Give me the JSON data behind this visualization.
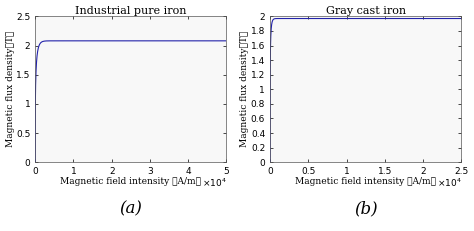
{
  "title_a": "Industrial pure iron",
  "title_b": "Gray cast iron",
  "xlabel_a": "Magnetic field intensity （A/m）",
  "xlabel_b": "Magnetic field intensity （A/m）",
  "ylabel_a": "Magnetic flux density（T）",
  "ylabel_b": "Magnetic flux density（T）",
  "label_a": "(a)",
  "label_b": "(b)",
  "xlim_a": [
    0,
    50000
  ],
  "ylim_a": [
    0,
    2.5
  ],
  "xticks_a": [
    0,
    10000,
    20000,
    30000,
    40000,
    50000
  ],
  "xticklabels_a": [
    "0",
    "1",
    "2",
    "3",
    "4",
    "5"
  ],
  "yticks_a": [
    0,
    0.5,
    1.0,
    1.5,
    2.0,
    2.5
  ],
  "yticklabels_a": [
    "0",
    "0.5",
    "1",
    "1.5",
    "2",
    "2.5"
  ],
  "xlim_b": [
    0,
    25000
  ],
  "ylim_b": [
    0,
    2.0
  ],
  "xticks_b": [
    0,
    5000,
    10000,
    15000,
    20000,
    25000
  ],
  "xticklabels_b": [
    "0",
    "0.5",
    "1",
    "1.5",
    "2",
    "2.5"
  ],
  "yticks_b": [
    0,
    0.2,
    0.4,
    0.6,
    0.8,
    1.0,
    1.2,
    1.4,
    1.6,
    1.8,
    2.0
  ],
  "yticklabels_b": [
    "0",
    "0.2",
    "0.4",
    "0.6",
    "0.8",
    "1",
    "1.2",
    "1.4",
    "1.6",
    "1.8",
    "2"
  ],
  "line_color": "#2222aa",
  "bg_color": "#f8f8f8",
  "title_fontsize": 8,
  "label_fontsize": 6.5,
  "tick_fontsize": 6.5,
  "subplot_label_fontsize": 12
}
